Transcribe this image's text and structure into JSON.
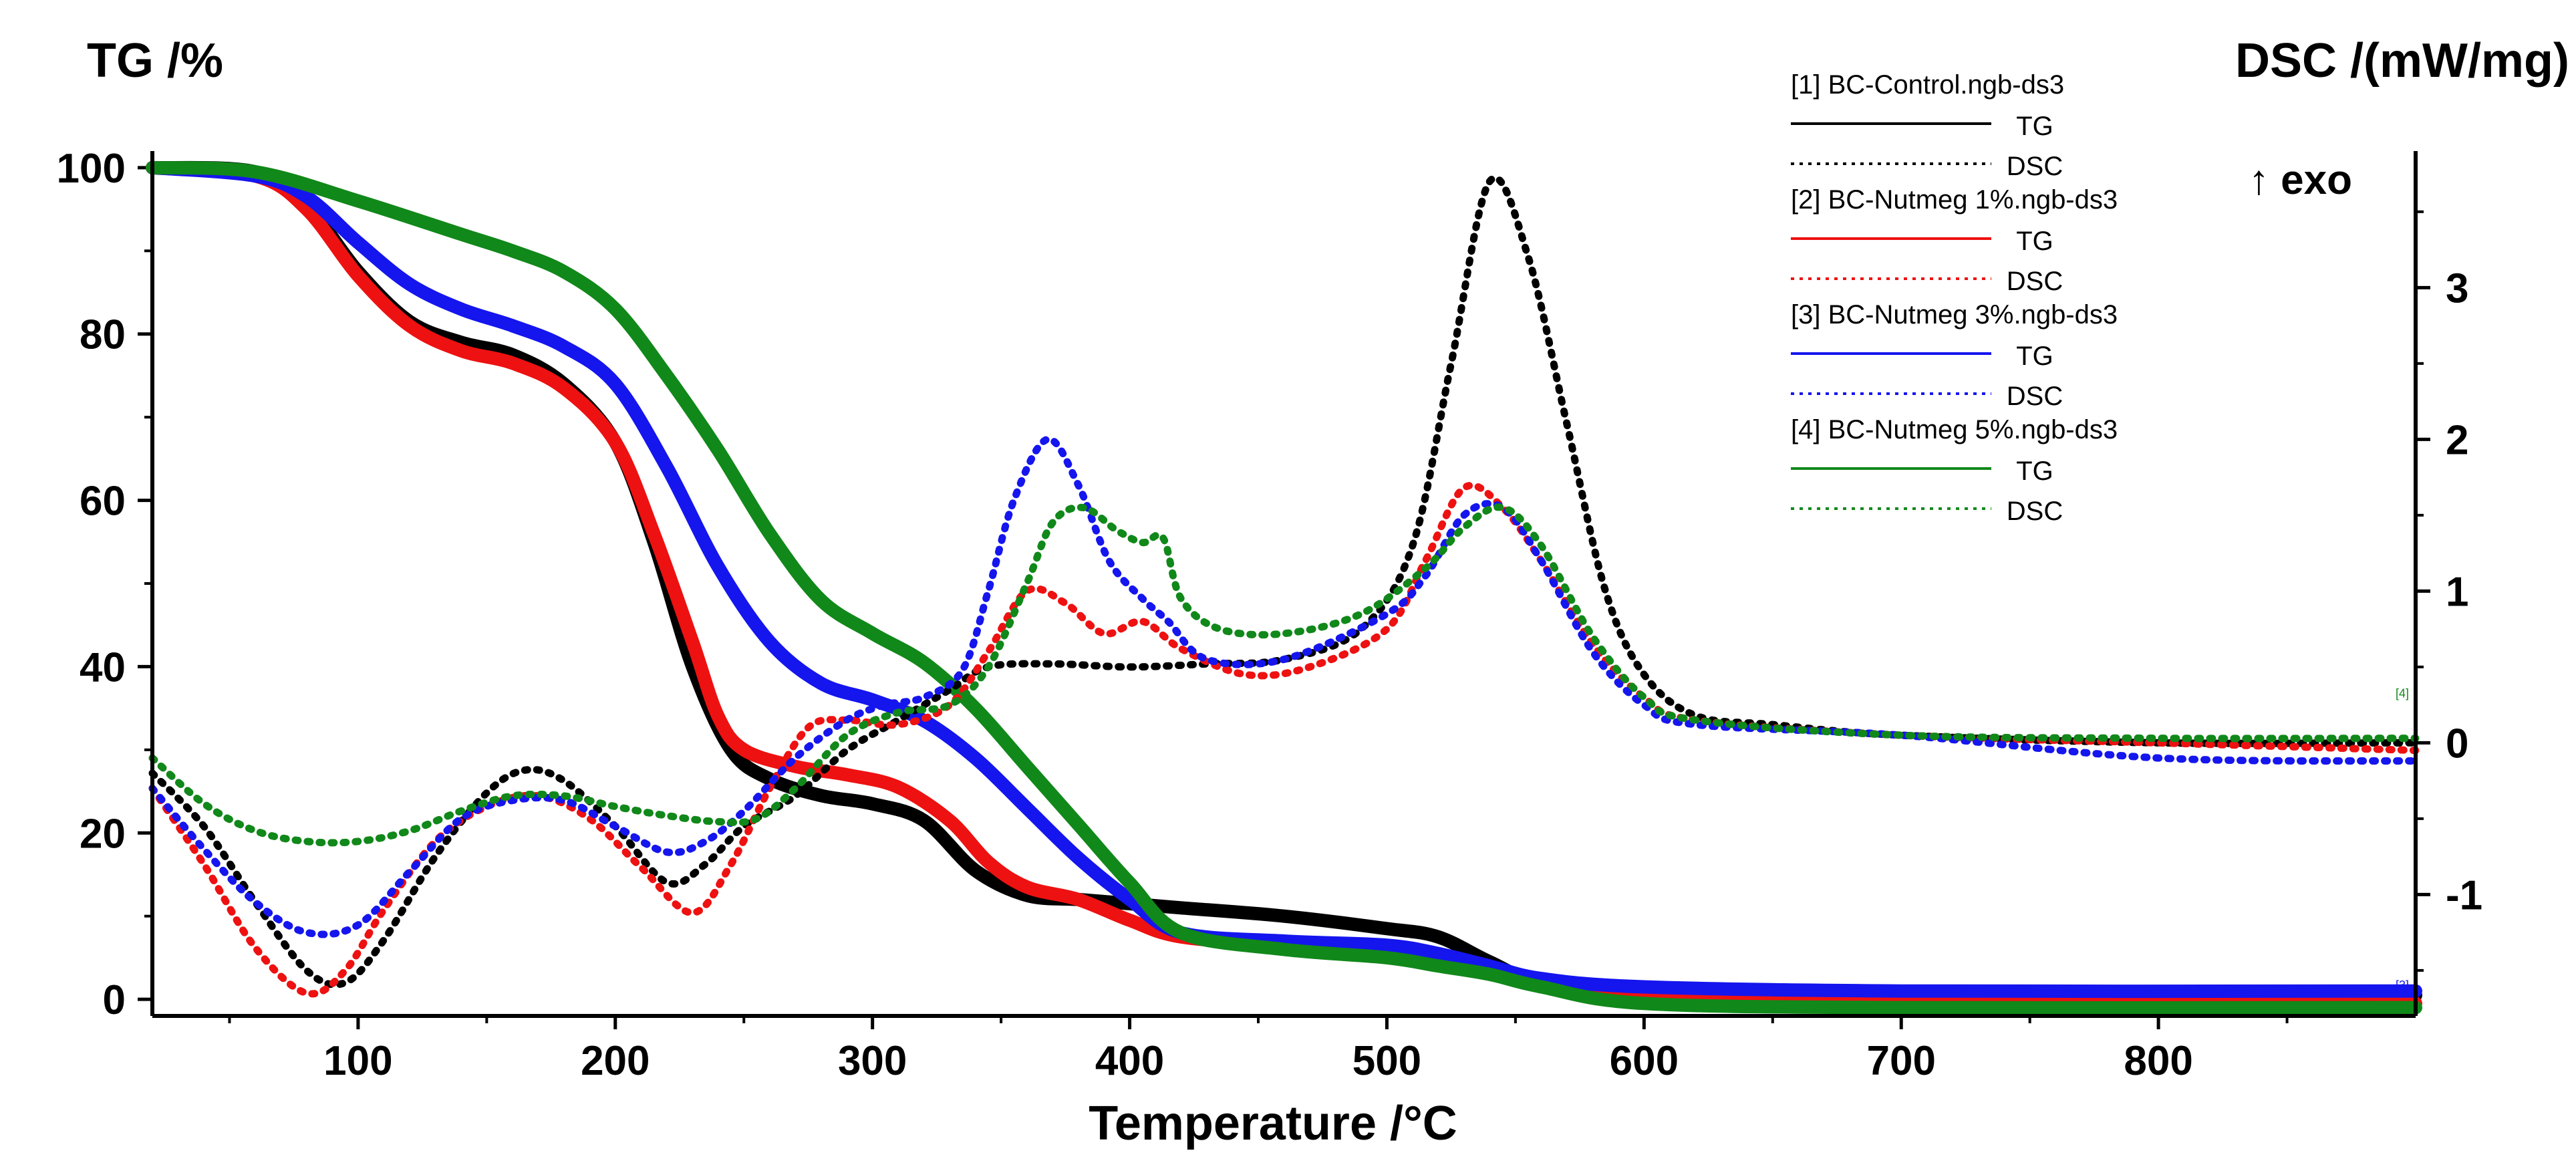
{
  "chart_data": {
    "type": "line",
    "x_axis": {
      "label": "Temperature /°C",
      "range": [
        20,
        900
      ],
      "ticks": [
        100,
        200,
        300,
        400,
        500,
        600,
        700,
        800
      ]
    },
    "y_left": {
      "label": "TG /%",
      "range": [
        -2,
        102
      ],
      "ticks": [
        0,
        20,
        40,
        60,
        80,
        100
      ]
    },
    "y_right": {
      "label": "DSC /(mW/mg)",
      "range": [
        -1.8,
        3.9
      ],
      "ticks": [
        -1,
        0,
        1,
        2,
        3
      ],
      "tick_labels": [
        "-1",
        "0",
        "1",
        "2",
        "3"
      ]
    },
    "exo_label": "↑ exo",
    "samples": [
      {
        "name": "[1] BC-Control.ngb-ds3",
        "color": "#000000",
        "tg_label": "TG",
        "dsc_label": "DSC",
        "tg": [
          [
            20,
            100
          ],
          [
            60,
            99.5
          ],
          [
            80,
            95.5
          ],
          [
            100,
            87.5
          ],
          [
            120,
            81.5
          ],
          [
            140,
            79
          ],
          [
            160,
            77.5
          ],
          [
            180,
            74
          ],
          [
            200,
            67
          ],
          [
            215,
            55
          ],
          [
            230,
            40
          ],
          [
            245,
            30
          ],
          [
            260,
            26.5
          ],
          [
            280,
            24.5
          ],
          [
            300,
            23.5
          ],
          [
            320,
            21.5
          ],
          [
            340,
            15.5
          ],
          [
            360,
            12.5
          ],
          [
            380,
            12
          ],
          [
            400,
            11.5
          ],
          [
            420,
            11
          ],
          [
            460,
            10
          ],
          [
            500,
            8.5
          ],
          [
            520,
            7.5
          ],
          [
            540,
            4.5
          ],
          [
            560,
            2
          ],
          [
            600,
            1
          ],
          [
            700,
            0.5
          ],
          [
            900,
            0.5
          ]
        ],
        "dsc": [
          [
            20,
            -0.2
          ],
          [
            40,
            -0.55
          ],
          [
            60,
            -1.05
          ],
          [
            80,
            -1.5
          ],
          [
            95,
            -1.58
          ],
          [
            110,
            -1.3
          ],
          [
            130,
            -0.75
          ],
          [
            150,
            -0.33
          ],
          [
            165,
            -0.18
          ],
          [
            180,
            -0.25
          ],
          [
            200,
            -0.55
          ],
          [
            220,
            -0.92
          ],
          [
            235,
            -0.8
          ],
          [
            250,
            -0.55
          ],
          [
            270,
            -0.35
          ],
          [
            290,
            -0.05
          ],
          [
            310,
            0.15
          ],
          [
            330,
            0.35
          ],
          [
            345,
            0.5
          ],
          [
            370,
            0.52
          ],
          [
            400,
            0.5
          ],
          [
            430,
            0.52
          ],
          [
            460,
            0.55
          ],
          [
            490,
            0.75
          ],
          [
            510,
            1.3
          ],
          [
            525,
            2.5
          ],
          [
            540,
            3.7
          ],
          [
            555,
            3.2
          ],
          [
            570,
            2.1
          ],
          [
            585,
            1.0
          ],
          [
            600,
            0.45
          ],
          [
            620,
            0.18
          ],
          [
            650,
            0.12
          ],
          [
            700,
            0.05
          ],
          [
            800,
            0
          ],
          [
            900,
            0
          ]
        ]
      },
      {
        "name": "[2] BC-Nutmeg 1%.ngb-ds3",
        "color": "#ee1111",
        "tg_label": "TG",
        "dsc_label": "DSC",
        "tg": [
          [
            20,
            100
          ],
          [
            60,
            99
          ],
          [
            80,
            95
          ],
          [
            100,
            87
          ],
          [
            120,
            81
          ],
          [
            140,
            78
          ],
          [
            160,
            76.5
          ],
          [
            180,
            73.5
          ],
          [
            200,
            67
          ],
          [
            215,
            56
          ],
          [
            230,
            43
          ],
          [
            240,
            34
          ],
          [
            250,
            30
          ],
          [
            270,
            28
          ],
          [
            290,
            27
          ],
          [
            310,
            25.5
          ],
          [
            330,
            21.5
          ],
          [
            345,
            16.5
          ],
          [
            360,
            13.5
          ],
          [
            380,
            12
          ],
          [
            400,
            9.5
          ],
          [
            420,
            7.5
          ],
          [
            460,
            6.5
          ],
          [
            500,
            5.5
          ],
          [
            520,
            4.5
          ],
          [
            540,
            3.5
          ],
          [
            560,
            2
          ],
          [
            600,
            0
          ],
          [
            700,
            -0.5
          ],
          [
            900,
            -0.5
          ]
        ],
        "dsc": [
          [
            20,
            -0.3
          ],
          [
            40,
            -0.8
          ],
          [
            60,
            -1.35
          ],
          [
            80,
            -1.65
          ],
          [
            95,
            -1.5
          ],
          [
            110,
            -1.1
          ],
          [
            130,
            -0.65
          ],
          [
            150,
            -0.42
          ],
          [
            170,
            -0.35
          ],
          [
            190,
            -0.5
          ],
          [
            210,
            -0.82
          ],
          [
            230,
            -1.12
          ],
          [
            245,
            -0.8
          ],
          [
            260,
            -0.3
          ],
          [
            275,
            0.1
          ],
          [
            290,
            0.15
          ],
          [
            310,
            0.12
          ],
          [
            330,
            0.25
          ],
          [
            345,
            0.6
          ],
          [
            360,
            1.0
          ],
          [
            375,
            0.92
          ],
          [
            390,
            0.72
          ],
          [
            405,
            0.8
          ],
          [
            420,
            0.62
          ],
          [
            445,
            0.45
          ],
          [
            470,
            0.5
          ],
          [
            500,
            0.75
          ],
          [
            515,
            1.2
          ],
          [
            530,
            1.68
          ],
          [
            545,
            1.55
          ],
          [
            560,
            1.2
          ],
          [
            580,
            0.65
          ],
          [
            600,
            0.3
          ],
          [
            620,
            0.15
          ],
          [
            700,
            0.05
          ],
          [
            800,
            0
          ],
          [
            900,
            -0.05
          ]
        ]
      },
      {
        "name": "[3] BC-Nutmeg 3%.ngb-ds3",
        "color": "#1515ee",
        "tg_label": "TG",
        "dsc_label": "DSC",
        "tg": [
          [
            20,
            100
          ],
          [
            60,
            99
          ],
          [
            80,
            96.5
          ],
          [
            100,
            91
          ],
          [
            120,
            86
          ],
          [
            140,
            83
          ],
          [
            160,
            81
          ],
          [
            180,
            78.5
          ],
          [
            200,
            74
          ],
          [
            220,
            64
          ],
          [
            240,
            52
          ],
          [
            260,
            43
          ],
          [
            280,
            38
          ],
          [
            300,
            36
          ],
          [
            320,
            33.5
          ],
          [
            340,
            29
          ],
          [
            360,
            23
          ],
          [
            380,
            17
          ],
          [
            400,
            12
          ],
          [
            420,
            8
          ],
          [
            460,
            7
          ],
          [
            500,
            6.5
          ],
          [
            520,
            5.5
          ],
          [
            540,
            4
          ],
          [
            560,
            2.5
          ],
          [
            600,
            1.5
          ],
          [
            700,
            1
          ],
          [
            900,
            1
          ]
        ],
        "dsc": [
          [
            20,
            -0.3
          ],
          [
            40,
            -0.7
          ],
          [
            60,
            -1.05
          ],
          [
            80,
            -1.25
          ],
          [
            100,
            -1.2
          ],
          [
            120,
            -0.85
          ],
          [
            140,
            -0.5
          ],
          [
            160,
            -0.38
          ],
          [
            180,
            -0.38
          ],
          [
            200,
            -0.55
          ],
          [
            220,
            -0.72
          ],
          [
            235,
            -0.65
          ],
          [
            250,
            -0.45
          ],
          [
            270,
            -0.1
          ],
          [
            290,
            0.15
          ],
          [
            305,
            0.25
          ],
          [
            320,
            0.3
          ],
          [
            335,
            0.48
          ],
          [
            345,
            1.0
          ],
          [
            355,
            1.6
          ],
          [
            368,
            2.0
          ],
          [
            380,
            1.7
          ],
          [
            392,
            1.2
          ],
          [
            405,
            0.95
          ],
          [
            415,
            0.8
          ],
          [
            430,
            0.55
          ],
          [
            460,
            0.55
          ],
          [
            500,
            0.85
          ],
          [
            515,
            1.1
          ],
          [
            530,
            1.5
          ],
          [
            545,
            1.55
          ],
          [
            560,
            1.2
          ],
          [
            580,
            0.6
          ],
          [
            600,
            0.25
          ],
          [
            620,
            0.12
          ],
          [
            700,
            0.05
          ],
          [
            800,
            -0.1
          ],
          [
            900,
            -0.12
          ]
        ]
      },
      {
        "name": "[4] BC-Nutmeg 5%.ngb-ds3",
        "color": "#11881a",
        "tg_label": "TG",
        "dsc_label": "DSC",
        "tg": [
          [
            20,
            100
          ],
          [
            60,
            99.5
          ],
          [
            100,
            96
          ],
          [
            140,
            92
          ],
          [
            160,
            90
          ],
          [
            180,
            87.5
          ],
          [
            200,
            83
          ],
          [
            220,
            75
          ],
          [
            240,
            66
          ],
          [
            260,
            56
          ],
          [
            280,
            48
          ],
          [
            300,
            44
          ],
          [
            320,
            40.5
          ],
          [
            340,
            35
          ],
          [
            360,
            28
          ],
          [
            380,
            21
          ],
          [
            400,
            14
          ],
          [
            420,
            8
          ],
          [
            460,
            6
          ],
          [
            500,
            5
          ],
          [
            520,
            4
          ],
          [
            540,
            3
          ],
          [
            560,
            1.5
          ],
          [
            600,
            -0.5
          ],
          [
            700,
            -1
          ],
          [
            900,
            -1
          ]
        ],
        "dsc": [
          [
            20,
            -0.1
          ],
          [
            40,
            -0.4
          ],
          [
            60,
            -0.58
          ],
          [
            80,
            -0.65
          ],
          [
            100,
            -0.65
          ],
          [
            120,
            -0.58
          ],
          [
            140,
            -0.45
          ],
          [
            160,
            -0.35
          ],
          [
            180,
            -0.35
          ],
          [
            200,
            -0.42
          ],
          [
            220,
            -0.48
          ],
          [
            240,
            -0.52
          ],
          [
            255,
            -0.5
          ],
          [
            270,
            -0.3
          ],
          [
            290,
            0.05
          ],
          [
            310,
            0.2
          ],
          [
            330,
            0.25
          ],
          [
            345,
            0.5
          ],
          [
            360,
            1.05
          ],
          [
            370,
            1.45
          ],
          [
            382,
            1.55
          ],
          [
            395,
            1.4
          ],
          [
            405,
            1.32
          ],
          [
            413,
            1.35
          ],
          [
            420,
            0.95
          ],
          [
            435,
            0.75
          ],
          [
            460,
            0.72
          ],
          [
            490,
            0.85
          ],
          [
            515,
            1.15
          ],
          [
            530,
            1.42
          ],
          [
            545,
            1.55
          ],
          [
            560,
            1.3
          ],
          [
            580,
            0.7
          ],
          [
            600,
            0.3
          ],
          [
            620,
            0.15
          ],
          [
            700,
            0.05
          ],
          [
            800,
            0.03
          ],
          [
            900,
            0.03
          ]
        ]
      }
    ],
    "end_markers": [
      "[4]",
      "[3]"
    ]
  }
}
